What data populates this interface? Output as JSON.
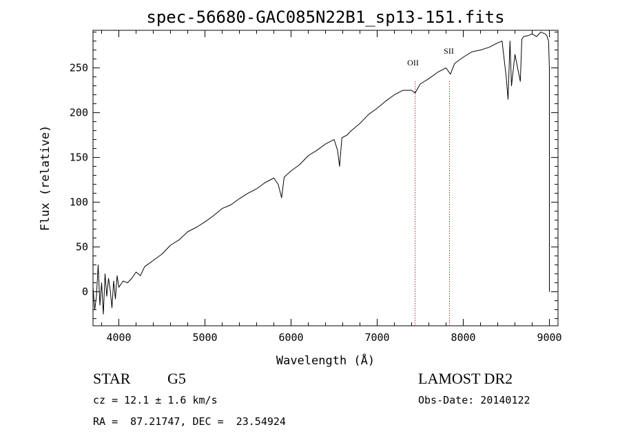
{
  "chart_data": {
    "type": "line",
    "title": "spec-56680-GAC085N22B1_sp13-151.fits",
    "xlabel": "Wavelength (Å)",
    "ylabel": "Flux (relative)",
    "xlim": [
      3700,
      9100
    ],
    "ylim": [
      -38,
      292
    ],
    "xticks": [
      4000,
      5000,
      6000,
      7000,
      8000,
      9000
    ],
    "yticks": [
      0,
      50,
      100,
      150,
      200,
      250
    ],
    "grid": false,
    "lines": [
      {
        "label": "OII",
        "x": 7440
      },
      {
        "label": "SII",
        "x": 7840
      }
    ],
    "series": [
      {
        "x": [
          3700,
          3720,
          3740,
          3760,
          3780,
          3800,
          3820,
          3840,
          3860,
          3880,
          3900,
          3920,
          3940,
          3960,
          3980,
          4000,
          4050,
          4100,
          4150,
          4200,
          4250,
          4300,
          4400,
          4500,
          4600,
          4700,
          4800,
          4900,
          5000,
          5100,
          5200,
          5300,
          5400,
          5500,
          5600,
          5700,
          5800,
          5850,
          5890,
          5920,
          6000,
          6100,
          6200,
          6300,
          6400,
          6500,
          6540,
          6563,
          6590,
          6650,
          6700,
          6800,
          6900,
          7000,
          7100,
          7200,
          7300,
          7400,
          7440,
          7500,
          7600,
          7700,
          7800,
          7850,
          7900,
          8000,
          8100,
          8200,
          8300,
          8400,
          8450,
          8498,
          8520,
          8542,
          8560,
          8600,
          8662,
          8680,
          8700,
          8750,
          8800,
          8850,
          8900,
          8950,
          8970,
          8990,
          9000,
          9000,
          9000
        ],
        "values": [
          5,
          -20,
          -5,
          30,
          -15,
          10,
          -25,
          20,
          -5,
          15,
          2,
          -18,
          12,
          -8,
          18,
          5,
          12,
          10,
          15,
          22,
          18,
          28,
          35,
          42,
          52,
          58,
          67,
          72,
          78,
          85,
          93,
          97,
          104,
          110,
          115,
          122,
          127,
          120,
          105,
          128,
          135,
          142,
          152,
          158,
          165,
          170,
          158,
          140,
          172,
          175,
          180,
          188,
          198,
          205,
          213,
          220,
          225,
          225,
          222,
          232,
          238,
          245,
          250,
          243,
          255,
          262,
          268,
          270,
          273,
          278,
          280,
          240,
          215,
          280,
          230,
          265,
          235,
          282,
          285,
          286,
          288,
          285,
          290,
          288,
          286,
          280,
          250,
          60,
          0
        ]
      }
    ]
  },
  "info": {
    "object_class": "STAR",
    "subclass": "G5",
    "survey": "LAMOST DR2",
    "cz": "cz = 12.1 ± 1.6 km/s",
    "obs_date": "Obs-Date: 20140122",
    "radec": "RA =  87.21747, DEC =  23.54924"
  }
}
